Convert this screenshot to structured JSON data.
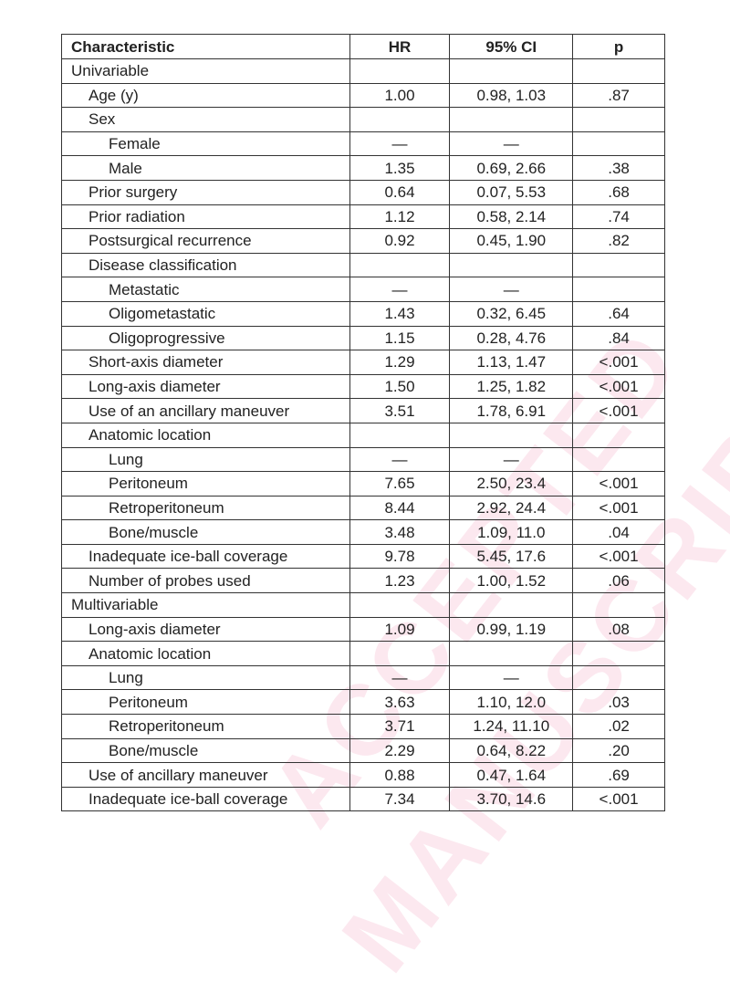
{
  "watermark": {
    "line1": "ACCEPTED",
    "line2": "MANUSCRIPT",
    "color": "#f4c2d2"
  },
  "table": {
    "headers": [
      "Characteristic",
      "HR",
      "95% CI",
      "p"
    ],
    "rows": [
      {
        "label": "Univariable",
        "level": 0,
        "hr": "",
        "ci": "",
        "p": ""
      },
      {
        "label": "Age (y)",
        "level": 1,
        "hr": "1.00",
        "ci": "0.98, 1.03",
        "p": ".87"
      },
      {
        "label": "Sex",
        "level": 1,
        "hr": "",
        "ci": "",
        "p": ""
      },
      {
        "label": "Female",
        "level": 2,
        "hr": "—",
        "ci": "—",
        "p": ""
      },
      {
        "label": "Male",
        "level": 2,
        "hr": "1.35",
        "ci": "0.69, 2.66",
        "p": ".38"
      },
      {
        "label": "Prior surgery",
        "level": 1,
        "hr": "0.64",
        "ci": "0.07, 5.53",
        "p": ".68"
      },
      {
        "label": "Prior radiation",
        "level": 1,
        "hr": "1.12",
        "ci": "0.58, 2.14",
        "p": ".74"
      },
      {
        "label": "Postsurgical recurrence",
        "level": 1,
        "hr": "0.92",
        "ci": "0.45, 1.90",
        "p": ".82"
      },
      {
        "label": "Disease classification",
        "level": 1,
        "hr": "",
        "ci": "",
        "p": ""
      },
      {
        "label": "Metastatic",
        "level": 2,
        "hr": "—",
        "ci": "—",
        "p": ""
      },
      {
        "label": "Oligometastatic",
        "level": 2,
        "hr": "1.43",
        "ci": "0.32, 6.45",
        "p": ".64"
      },
      {
        "label": "Oligoprogressive",
        "level": 2,
        "hr": "1.15",
        "ci": "0.28, 4.76",
        "p": ".84"
      },
      {
        "label": "Short-axis diameter",
        "level": 1,
        "hr": "1.29",
        "ci": "1.13, 1.47",
        "p": "<.001"
      },
      {
        "label": "Long-axis diameter",
        "level": 1,
        "hr": "1.50",
        "ci": "1.25, 1.82",
        "p": "<.001"
      },
      {
        "label": "Use of an ancillary maneuver",
        "level": 1,
        "hr": "3.51",
        "ci": "1.78, 6.91",
        "p": "<.001"
      },
      {
        "label": "Anatomic location",
        "level": 1,
        "hr": "",
        "ci": "",
        "p": ""
      },
      {
        "label": "Lung",
        "level": 2,
        "hr": "—",
        "ci": "—",
        "p": ""
      },
      {
        "label": "Peritoneum",
        "level": 2,
        "hr": "7.65",
        "ci": "2.50, 23.4",
        "p": "<.001"
      },
      {
        "label": "Retroperitoneum",
        "level": 2,
        "hr": "8.44",
        "ci": "2.92, 24.4",
        "p": "<.001"
      },
      {
        "label": "Bone/muscle",
        "level": 2,
        "hr": "3.48",
        "ci": "1.09, 11.0",
        "p": ".04"
      },
      {
        "label": "Inadequate ice-ball coverage",
        "level": 1,
        "hr": "9.78",
        "ci": "5.45, 17.6",
        "p": "<.001"
      },
      {
        "label": "Number of probes used",
        "level": 1,
        "hr": "1.23",
        "ci": "1.00, 1.52",
        "p": ".06"
      },
      {
        "label": "Multivariable",
        "level": 0,
        "hr": "",
        "ci": "",
        "p": ""
      },
      {
        "label": "Long-axis diameter",
        "level": 1,
        "hr": "1.09",
        "ci": "0.99, 1.19",
        "p": ".08"
      },
      {
        "label": "Anatomic location",
        "level": 1,
        "hr": "",
        "ci": "",
        "p": ""
      },
      {
        "label": "Lung",
        "level": 2,
        "hr": "—",
        "ci": "—",
        "p": ""
      },
      {
        "label": "Peritoneum",
        "level": 2,
        "hr": "3.63",
        "ci": "1.10, 12.0",
        "p": ".03"
      },
      {
        "label": "Retroperitoneum",
        "level": 2,
        "hr": "3.71",
        "ci": "1.24, 11.10",
        "p": ".02"
      },
      {
        "label": "Bone/muscle",
        "level": 2,
        "hr": "2.29",
        "ci": "0.64, 8.22",
        "p": ".20"
      },
      {
        "label": "Use of ancillary maneuver",
        "level": 1,
        "hr": "0.88",
        "ci": "0.47, 1.64",
        "p": ".69"
      },
      {
        "label": "Inadequate ice-ball coverage",
        "level": 1,
        "hr": "7.34",
        "ci": "3.70, 14.6",
        "p": "<.001"
      }
    ]
  }
}
